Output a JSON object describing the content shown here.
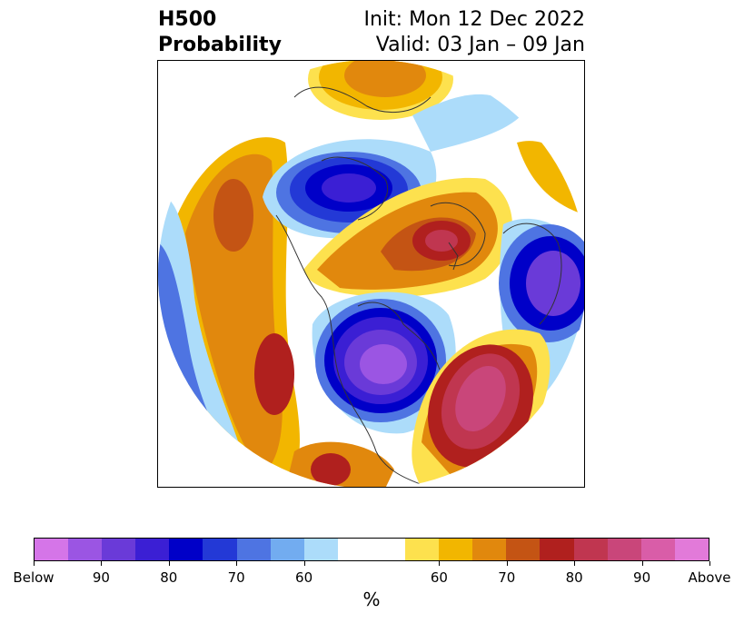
{
  "header": {
    "variable": "H500",
    "product": "Probability",
    "init": "Init: Mon 12 Dec 2022",
    "valid": "Valid: 03 Jan – 09 Jan"
  },
  "colorbar": {
    "unit": "%",
    "colors": [
      "#d575e8",
      "#9b55e3",
      "#6a3ad8",
      "#3b1fd4",
      "#0000c8",
      "#2339d6",
      "#4e74e2",
      "#72acf0",
      "#acdcfa",
      "#ffffff",
      "#ffffff",
      "#fde14e",
      "#f2b600",
      "#e1880d",
      "#c45414",
      "#b0201e",
      "#c03650",
      "#c9467a",
      "#d95da8",
      "#e27ad9"
    ],
    "tick_labels": [
      "Below",
      "90",
      "80",
      "70",
      "60",
      "60",
      "70",
      "80",
      "90",
      "Above"
    ]
  },
  "map": {
    "projection": "north-polar-stereographic",
    "below_color": "#6a3ad8",
    "above_color": "#c9467a"
  }
}
